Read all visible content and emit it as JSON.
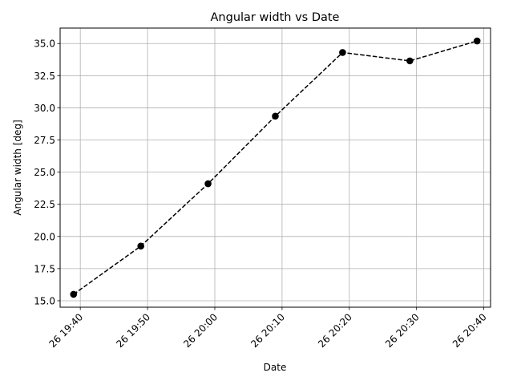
{
  "chart_data": {
    "type": "line",
    "title": "Angular width vs Date",
    "xlabel": "Date",
    "ylabel": "Angular width [deg]",
    "grid": true,
    "x_ticks": [
      "26 19:40",
      "26 19:50",
      "26 20:00",
      "26 20:10",
      "26 20:20",
      "26 20:30",
      "26 20:40"
    ],
    "y_ticks": [
      "15.0",
      "17.5",
      "20.0",
      "22.5",
      "25.0",
      "27.5",
      "30.0",
      "32.5",
      "35.0"
    ],
    "ylim": [
      14.5,
      36.2
    ],
    "xlim": [
      "26 19:37",
      "26 20:41"
    ],
    "series": [
      {
        "line_style": "dashed",
        "marker": "circle",
        "color": "#000000",
        "x": [
          "26 19:39",
          "26 19:49",
          "26 19:59",
          "26 20:09",
          "26 20:19",
          "26 20:29",
          "26 20:39"
        ],
        "values": [
          15.5,
          19.25,
          24.1,
          29.35,
          34.3,
          33.65,
          35.2
        ]
      }
    ]
  }
}
